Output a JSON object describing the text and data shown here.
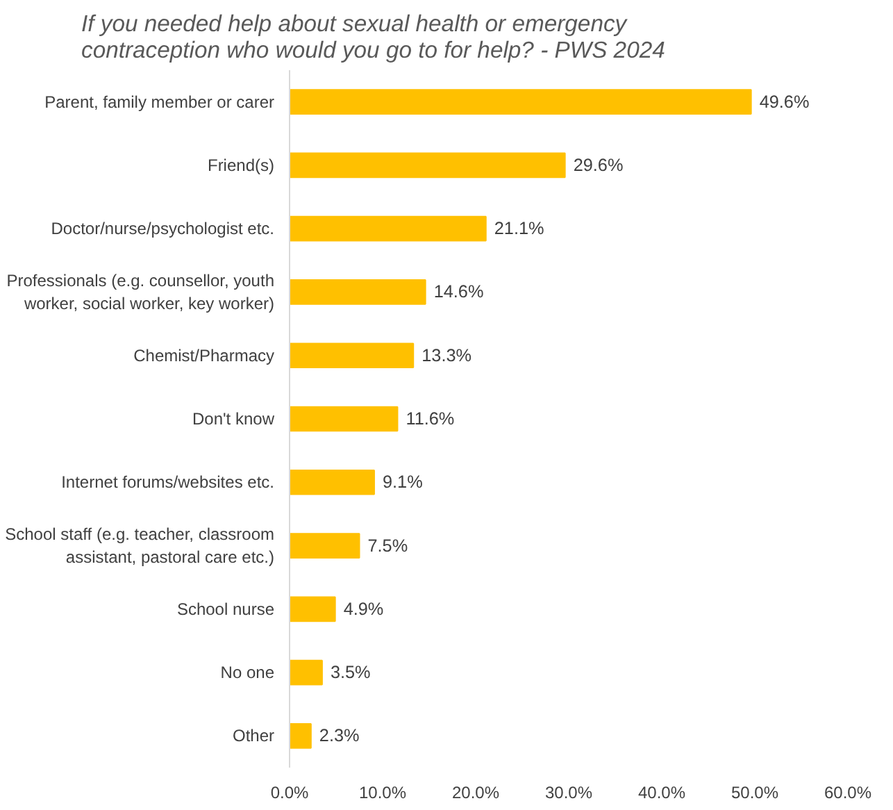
{
  "chart_data": {
    "type": "bar",
    "orientation": "horizontal",
    "title": "If you needed help about sexual health or emergency contraception who would you go to for help? - PWS 2024",
    "categories": [
      "Parent, family member or carer",
      "Friend(s)",
      "Doctor/nurse/psychologist etc.",
      "Professionals (e.g. counsellor, youth worker, social worker, key worker)",
      "Chemist/Pharmacy",
      "Don't know",
      "Internet forums/websites etc.",
      "School staff (e.g. teacher, classroom assistant, pastoral care etc.)",
      "School nurse",
      "No one",
      "Other"
    ],
    "values": [
      49.6,
      29.6,
      21.1,
      14.6,
      13.3,
      11.6,
      9.1,
      7.5,
      4.9,
      3.5,
      2.3
    ],
    "value_labels": [
      "49.6%",
      "29.6%",
      "21.1%",
      "14.6%",
      "13.3%",
      "11.6%",
      "9.1%",
      "7.5%",
      "4.9%",
      "3.5%",
      "2.3%"
    ],
    "color": "#ffc000",
    "xlim": [
      0,
      60
    ],
    "xticks": [
      {
        "value": 0,
        "label": "0.0%"
      },
      {
        "value": 10,
        "label": "10.0%"
      },
      {
        "value": 20,
        "label": "20.0%"
      },
      {
        "value": 30,
        "label": "30.0%"
      },
      {
        "value": 40,
        "label": "40.0%"
      },
      {
        "value": 50,
        "label": "50.0%"
      },
      {
        "value": 60,
        "label": "60.0%"
      }
    ],
    "grid": false
  }
}
